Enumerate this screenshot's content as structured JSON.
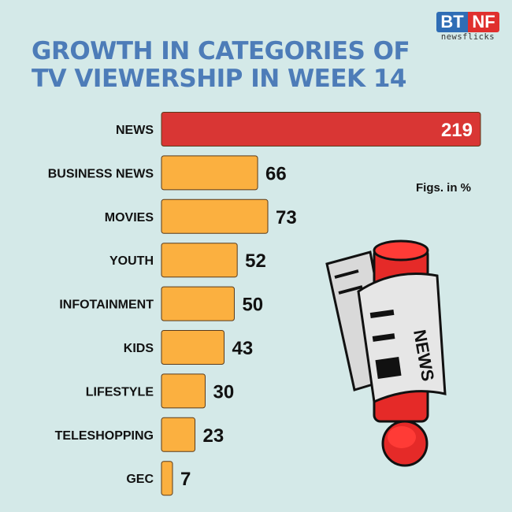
{
  "title_line1": "GROWTH IN CATEGORIES OF",
  "title_line2": "TV VIEWERSHIP IN WEEK 14",
  "logo": {
    "left": "BT",
    "right": "NF",
    "sub": "newsflicks"
  },
  "note": "Figs. in %",
  "illustration": {
    "text": "NEWS"
  },
  "colors": {
    "background": "#d4e9e8",
    "title": "#4d7cb8",
    "highlight": "#d93634",
    "bar": "#fbb040"
  },
  "chart_data": {
    "type": "bar",
    "orientation": "horizontal",
    "title": "GROWTH IN CATEGORIES OF TV VIEWERSHIP IN WEEK 14",
    "unit": "%",
    "categories": [
      "NEWS",
      "BUSINESS NEWS",
      "MOVIES",
      "YOUTH",
      "INFOTAINMENT",
      "KIDS",
      "LIFESTYLE",
      "TELESHOPPING",
      "GEC"
    ],
    "values": [
      219,
      66,
      73,
      52,
      50,
      43,
      30,
      23,
      7
    ],
    "highlight": "NEWS",
    "grid": false
  }
}
